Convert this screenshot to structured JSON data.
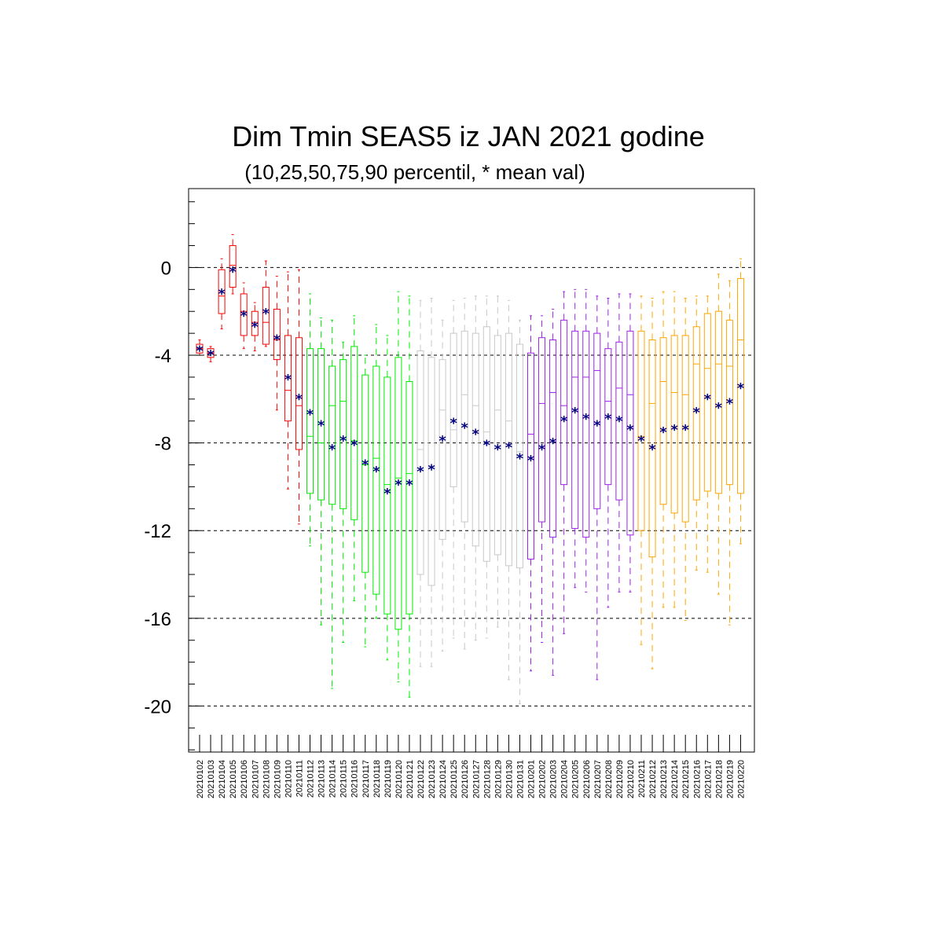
{
  "chart_data": {
    "type": "boxplot",
    "title": "Dim Tmin SEAS5 iz JAN 2021 godine",
    "subtitle": "(10,25,50,75,90 percentil, * mean val)",
    "ylim": [
      -22.1,
      3.6
    ],
    "yticks": [
      0,
      -4,
      -8,
      -12,
      -16,
      -20
    ],
    "ytick_labels": [
      "0",
      "-4",
      "-8",
      "-12",
      "-16",
      "-20"
    ],
    "grid": "dashed horizontal at major ticks",
    "categories": [
      "20210102",
      "20210103",
      "20210104",
      "20210105",
      "20210106",
      "20210107",
      "20210108",
      "20210109",
      "20210110",
      "20210111",
      "20210112",
      "20210113",
      "20210114",
      "20210115",
      "20210116",
      "20210117",
      "20210118",
      "20210119",
      "20210120",
      "20210121",
      "20210122",
      "20210123",
      "20210124",
      "20210125",
      "20210126",
      "20210127",
      "20210128",
      "20210129",
      "20210130",
      "20210131",
      "20210201",
      "20210202",
      "20210203",
      "20210204",
      "20210205",
      "20210206",
      "20210207",
      "20210208",
      "20210209",
      "20210210",
      "20210211",
      "20210212",
      "20210213",
      "20210214",
      "20210215",
      "20210216",
      "20210217",
      "20210218",
      "20210219",
      "20210220"
    ],
    "colors": [
      "#ff0000",
      "#ff0000",
      "#ff0000",
      "#ff0000",
      "#ff0000",
      "#ff0000",
      "#ff0000",
      "#ff0000",
      "#ff0000",
      "#ff0000",
      "#00ee00",
      "#00ee00",
      "#00ee00",
      "#00ee00",
      "#00ee00",
      "#00ee00",
      "#00ee00",
      "#00ee00",
      "#00ee00",
      "#00ee00",
      "#c8c8c8",
      "#c8c8c8",
      "#c8c8c8",
      "#c8c8c8",
      "#c8c8c8",
      "#c8c8c8",
      "#c8c8c8",
      "#c8c8c8",
      "#c8c8c8",
      "#c8c8c8",
      "#a020f0",
      "#a020f0",
      "#a020f0",
      "#a020f0",
      "#a020f0",
      "#a020f0",
      "#a020f0",
      "#a020f0",
      "#a020f0",
      "#a020f0",
      "#ffa500",
      "#ffa500",
      "#ffa500",
      "#ffa500",
      "#ffa500",
      "#ffa500",
      "#ffa500",
      "#ffa500",
      "#ffa500",
      "#ffa500"
    ],
    "mean_color": "#000080",
    "p10": [
      -4.0,
      -4.3,
      -2.8,
      -1.2,
      -3.7,
      -3.8,
      -3.6,
      -6.5,
      -10.1,
      -11.7,
      -12.7,
      -16.3,
      -19.2,
      -17.1,
      -15.2,
      -17.3,
      -16.0,
      -17.9,
      -18.9,
      -19.6,
      -18.2,
      -18.2,
      -17.5,
      -16.9,
      -17.4,
      -17.0,
      -16.9,
      -16.4,
      -18.8,
      -19.9,
      -18.4,
      -17.1,
      -18.6,
      -16.7,
      -14.6,
      -14.8,
      -18.8,
      -15.5,
      -14.8,
      -14.8,
      -17.2,
      -18.3,
      -15.5,
      -15.5,
      -16.1,
      -13.8,
      -13.9,
      -14.9,
      -16.3,
      -12.6
    ],
    "p25": [
      -3.9,
      -4.1,
      -2.1,
      -0.9,
      -3.1,
      -3.1,
      -3.5,
      -4.2,
      -7.0,
      -8.3,
      -10.3,
      -10.6,
      -10.8,
      -11.0,
      -11.5,
      -13.9,
      -14.9,
      -15.8,
      -16.5,
      -15.8,
      -14.0,
      -14.5,
      -12.4,
      -10.0,
      -11.6,
      -12.7,
      -13.4,
      -13.1,
      -13.6,
      -13.7,
      -13.3,
      -11.6,
      -12.3,
      -9.9,
      -11.9,
      -12.3,
      -11.0,
      -9.9,
      -10.6,
      -12.2,
      -12.0,
      -13.2,
      -10.8,
      -11.2,
      -11.6,
      -10.6,
      -10.2,
      -10.3,
      -9.9,
      -10.3
    ],
    "p50": [
      -3.7,
      -3.9,
      -1.3,
      0.1,
      -2.0,
      -2.5,
      -2.5,
      -3.3,
      -5.6,
      -6.3,
      -7.7,
      -8.0,
      -6.3,
      -6.1,
      -7.9,
      -9.0,
      -8.7,
      -9.9,
      -9.6,
      -9.4,
      -8.3,
      -9.1,
      -6.5,
      -7.4,
      -5.8,
      -6.3,
      -7.5,
      -6.5,
      -7.0,
      -8.4,
      -7.6,
      -6.2,
      -5.7,
      -6.3,
      -5.0,
      -5.0,
      -4.7,
      -6.1,
      -5.5,
      -5.8,
      -7.7,
      -6.2,
      -5.2,
      -5.7,
      -5.8,
      -4.4,
      -4.6,
      -4.4,
      -4.5,
      -3.3
    ],
    "p75": [
      -3.5,
      -3.7,
      -0.1,
      1.0,
      -1.2,
      -2.0,
      -0.9,
      -1.9,
      -3.1,
      -3.2,
      -3.7,
      -3.7,
      -4.5,
      -4.2,
      -3.6,
      -4.9,
      -4.5,
      -5.0,
      -4.1,
      -5.2,
      -3.8,
      -4.1,
      -4.2,
      -3.0,
      -2.9,
      -3.0,
      -2.7,
      -3.1,
      -3.0,
      -3.5,
      -3.9,
      -3.2,
      -3.3,
      -2.4,
      -2.9,
      -2.9,
      -3.0,
      -3.7,
      -3.4,
      -2.9,
      -2.9,
      -3.3,
      -3.2,
      -3.1,
      -3.1,
      -2.7,
      -2.1,
      -2.0,
      -2.4,
      -0.5
    ],
    "p90": [
      -3.3,
      -3.6,
      0.4,
      1.5,
      -0.7,
      -1.6,
      0.3,
      -0.4,
      -0.2,
      -0.1,
      -1.2,
      -2.3,
      -2.4,
      -3.4,
      -2.2,
      -4.0,
      -2.6,
      -3.1,
      -1.1,
      -1.3,
      -1.5,
      -1.4,
      -2.4,
      -1.5,
      -1.4,
      -1.3,
      -1.3,
      -1.3,
      -1.5,
      -2.4,
      -2.2,
      -2.2,
      -1.9,
      -1.1,
      -1.0,
      -1.0,
      -1.3,
      -1.4,
      -1.2,
      -1.2,
      -1.3,
      -1.4,
      -1.1,
      -1.1,
      -1.4,
      -1.3,
      -1.3,
      -0.3,
      -0.6,
      0.4
    ],
    "mean": [
      -3.7,
      -3.9,
      -1.1,
      -0.1,
      -2.1,
      -2.6,
      -2.0,
      -3.2,
      -5.0,
      -5.9,
      -6.6,
      -7.1,
      -8.2,
      -7.8,
      -8.0,
      -8.9,
      -9.2,
      -10.2,
      -9.8,
      -9.8,
      -9.2,
      -9.1,
      -7.8,
      -7.0,
      -7.2,
      -7.5,
      -8.0,
      -8.2,
      -8.1,
      -8.6,
      -8.7,
      -8.2,
      -7.9,
      -6.9,
      -6.5,
      -6.8,
      -7.1,
      -6.8,
      -6.9,
      -7.3,
      -7.8,
      -8.2,
      -7.4,
      -7.3,
      -7.3,
      -6.5,
      -5.9,
      -6.3,
      -6.1,
      -5.4
    ]
  }
}
